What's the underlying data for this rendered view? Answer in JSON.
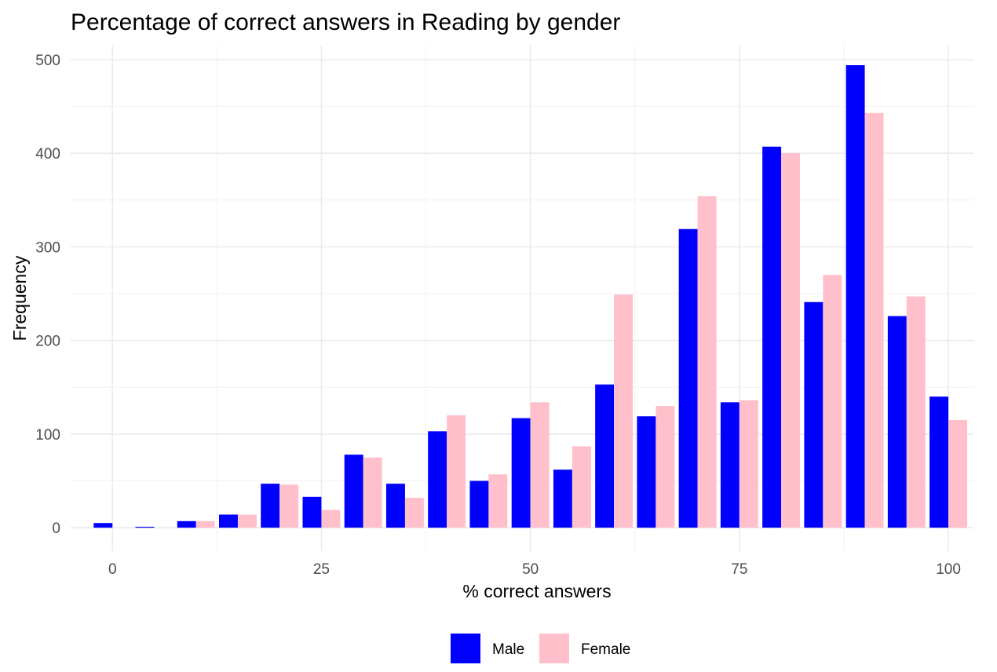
{
  "chart_data": {
    "type": "bar",
    "title": "Percentage of correct answers in Reading by gender",
    "xlabel": "% correct answers",
    "ylabel": "Frequency",
    "xlim": [
      -5,
      103
    ],
    "ylim": [
      -25,
      515
    ],
    "x_ticks": [
      0,
      25,
      50,
      75,
      100
    ],
    "y_ticks": [
      0,
      100,
      200,
      300,
      400,
      500
    ],
    "bin_centers": [
      0,
      5,
      10,
      15,
      20,
      25,
      30,
      35,
      40,
      45,
      50,
      55,
      60,
      65,
      70,
      75,
      80,
      85,
      90,
      95,
      100
    ],
    "bin_width": 5,
    "grid": true,
    "legend_position": "bottom",
    "series": [
      {
        "name": "Male",
        "color": "#0000ff",
        "values": [
          5,
          1,
          7,
          14,
          47,
          33,
          78,
          47,
          103,
          50,
          117,
          62,
          153,
          119,
          319,
          134,
          407,
          241,
          494,
          226,
          140
        ]
      },
      {
        "name": "Female",
        "color": "#ffc0cb",
        "values": [
          0,
          0,
          7,
          14,
          46,
          19,
          75,
          32,
          120,
          57,
          134,
          87,
          249,
          130,
          354,
          136,
          400,
          270,
          443,
          247,
          115
        ]
      }
    ]
  }
}
